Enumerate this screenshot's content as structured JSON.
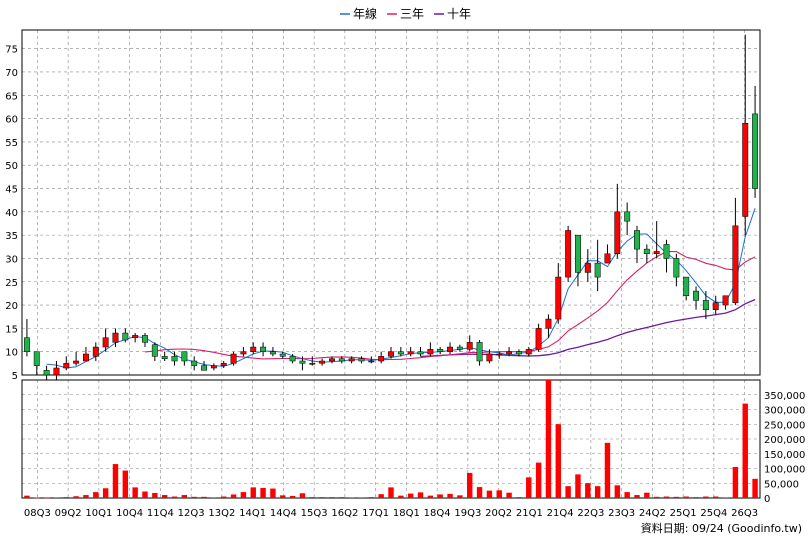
{
  "chart_data": {
    "type": "candlestick",
    "legend": [
      {
        "name": "年線",
        "color": "#1f6fd6"
      },
      {
        "name": "三年",
        "color": "#d8206b"
      },
      {
        "name": "十年",
        "color": "#6a1ba0"
      }
    ],
    "x_labels": [
      "08Q3",
      "09Q2",
      "10Q1",
      "10Q4",
      "11Q4",
      "12Q3",
      "13Q2",
      "14Q1",
      "14Q4",
      "15Q3",
      "16Q2",
      "17Q1",
      "18Q1",
      "18Q4",
      "19Q3",
      "20Q2",
      "21Q1",
      "21Q4",
      "22Q3",
      "23Q3",
      "24Q2",
      "25Q1",
      "25Q4",
      "26Q3"
    ],
    "price_axis": {
      "ticks": [
        5,
        10,
        15,
        20,
        25,
        30,
        35,
        40,
        45,
        50,
        55,
        60,
        65,
        70,
        75
      ],
      "ylim": [
        5,
        79
      ]
    },
    "volume_axis": {
      "ticks": [
        "0",
        "50,000",
        "100,000",
        "150,000",
        "200,000",
        "250,000",
        "300,000",
        "350,000"
      ],
      "max": 400000
    },
    "colors": {
      "up": "#ff0000",
      "down": "#22b14c",
      "volume": "#ff0000",
      "grid": "#888888"
    },
    "candles": [
      {
        "o": 13,
        "c": 10,
        "h": 17,
        "l": 9
      },
      {
        "o": 10,
        "c": 7,
        "h": 10,
        "l": 5
      },
      {
        "o": 6,
        "c": 5,
        "h": 7,
        "l": 4
      },
      {
        "o": 5,
        "c": 6.5,
        "h": 8,
        "l": 4
      },
      {
        "o": 6.5,
        "c": 7.5,
        "h": 9,
        "l": 6
      },
      {
        "o": 7.5,
        "c": 8,
        "h": 10,
        "l": 7
      },
      {
        "o": 8,
        "c": 9.5,
        "h": 11,
        "l": 8
      },
      {
        "o": 9,
        "c": 11,
        "h": 12,
        "l": 8
      },
      {
        "o": 11,
        "c": 13,
        "h": 15,
        "l": 10
      },
      {
        "o": 12,
        "c": 14,
        "h": 15,
        "l": 11
      },
      {
        "o": 14,
        "c": 12.5,
        "h": 15,
        "l": 12
      },
      {
        "o": 13,
        "c": 13.5,
        "h": 14,
        "l": 12
      },
      {
        "o": 13.5,
        "c": 12,
        "h": 14,
        "l": 11
      },
      {
        "o": 11.5,
        "c": 9,
        "h": 12,
        "l": 8
      },
      {
        "o": 9,
        "c": 8.5,
        "h": 10,
        "l": 8
      },
      {
        "o": 9,
        "c": 8,
        "h": 10,
        "l": 7
      },
      {
        "o": 10,
        "c": 8,
        "h": 10,
        "l": 7
      },
      {
        "o": 8,
        "c": 7,
        "h": 9,
        "l": 6
      },
      {
        "o": 7,
        "c": 6,
        "h": 8,
        "l": 6
      },
      {
        "o": 6.5,
        "c": 7,
        "h": 7.5,
        "l": 6
      },
      {
        "o": 7,
        "c": 7.5,
        "h": 8,
        "l": 6.5
      },
      {
        "o": 7.5,
        "c": 9.5,
        "h": 10,
        "l": 7
      },
      {
        "o": 9.5,
        "c": 10,
        "h": 11,
        "l": 9
      },
      {
        "o": 10,
        "c": 11,
        "h": 12,
        "l": 9.5
      },
      {
        "o": 11,
        "c": 10,
        "h": 12,
        "l": 9
      },
      {
        "o": 10,
        "c": 9.5,
        "h": 11,
        "l": 9
      },
      {
        "o": 9.5,
        "c": 9,
        "h": 10,
        "l": 8.5
      },
      {
        "o": 9,
        "c": 8,
        "h": 9.5,
        "l": 7.5
      },
      {
        "o": 8,
        "c": 7.5,
        "h": 9,
        "l": 6
      },
      {
        "o": 7.5,
        "c": 7.5,
        "h": 9,
        "l": 7
      },
      {
        "o": 7.5,
        "c": 8,
        "h": 8.5,
        "l": 7
      },
      {
        "o": 8,
        "c": 8.5,
        "h": 9,
        "l": 7.5
      },
      {
        "o": 8.5,
        "c": 8,
        "h": 9,
        "l": 7.5
      },
      {
        "o": 8,
        "c": 8.5,
        "h": 9,
        "l": 7.5
      },
      {
        "o": 8.5,
        "c": 8,
        "h": 9,
        "l": 7.5
      },
      {
        "o": 8,
        "c": 8,
        "h": 9,
        "l": 7.5
      },
      {
        "o": 8,
        "c": 9,
        "h": 10,
        "l": 7.5
      },
      {
        "o": 9,
        "c": 10,
        "h": 11,
        "l": 8.5
      },
      {
        "o": 10,
        "c": 9.5,
        "h": 11,
        "l": 9
      },
      {
        "o": 9.5,
        "c": 10,
        "h": 11,
        "l": 9
      },
      {
        "o": 10,
        "c": 9.5,
        "h": 11,
        "l": 9
      },
      {
        "o": 9.5,
        "c": 10.5,
        "h": 12,
        "l": 9
      },
      {
        "o": 10.5,
        "c": 10,
        "h": 11,
        "l": 9.5
      },
      {
        "o": 10,
        "c": 11,
        "h": 12,
        "l": 9.5
      },
      {
        "o": 11,
        "c": 10.5,
        "h": 11.5,
        "l": 10
      },
      {
        "o": 10.5,
        "c": 12,
        "h": 13.5,
        "l": 10
      },
      {
        "o": 12,
        "c": 8,
        "h": 12.5,
        "l": 7
      },
      {
        "o": 8,
        "c": 9.5,
        "h": 10.5,
        "l": 7.5
      },
      {
        "o": 9.5,
        "c": 9.5,
        "h": 10,
        "l": 8.5
      },
      {
        "o": 9.5,
        "c": 10,
        "h": 11,
        "l": 9
      },
      {
        "o": 10,
        "c": 9.5,
        "h": 10.5,
        "l": 9
      },
      {
        "o": 9.5,
        "c": 10.5,
        "h": 11,
        "l": 9
      },
      {
        "o": 10.5,
        "c": 15,
        "h": 16,
        "l": 10
      },
      {
        "o": 15,
        "c": 17,
        "h": 18,
        "l": 13
      },
      {
        "o": 17,
        "c": 26,
        "h": 29,
        "l": 16
      },
      {
        "o": 26,
        "c": 36,
        "h": 37,
        "l": 25
      },
      {
        "o": 35,
        "c": 27,
        "h": 35,
        "l": 24
      },
      {
        "o": 27,
        "c": 29,
        "h": 32,
        "l": 25
      },
      {
        "o": 29,
        "c": 26,
        "h": 34,
        "l": 23
      },
      {
        "o": 29,
        "c": 31,
        "h": 33,
        "l": 29
      },
      {
        "o": 31,
        "c": 40,
        "h": 46,
        "l": 30
      },
      {
        "o": 40,
        "c": 38,
        "h": 42,
        "l": 35
      },
      {
        "o": 36,
        "c": 32,
        "h": 37,
        "l": 29
      },
      {
        "o": 32,
        "c": 31,
        "h": 33,
        "l": 29
      },
      {
        "o": 31,
        "c": 31.5,
        "h": 38,
        "l": 30
      },
      {
        "o": 33,
        "c": 30,
        "h": 34,
        "l": 27
      },
      {
        "o": 30,
        "c": 26,
        "h": 31,
        "l": 24
      },
      {
        "o": 26,
        "c": 22,
        "h": 26,
        "l": 21
      },
      {
        "o": 23,
        "c": 21,
        "h": 24,
        "l": 19
      },
      {
        "o": 21,
        "c": 19,
        "h": 23,
        "l": 17
      },
      {
        "o": 19,
        "c": 20.5,
        "h": 22,
        "l": 18
      },
      {
        "o": 20,
        "c": 22,
        "h": 22,
        "l": 19
      },
      {
        "o": 20.5,
        "c": 37,
        "h": 43,
        "l": 20
      },
      {
        "o": 39,
        "c": 59,
        "h": 78,
        "l": 35
      },
      {
        "o": 61,
        "c": 45,
        "h": 67,
        "l": 43
      }
    ],
    "volumes": [
      8000,
      1000,
      1000,
      2000,
      3000,
      6000,
      10000,
      20000,
      33000,
      115000,
      93000,
      36000,
      22000,
      17000,
      10000,
      5000,
      10000,
      4000,
      4000,
      2000,
      5000,
      12000,
      20000,
      36000,
      34000,
      32000,
      9000,
      7000,
      16000,
      3000,
      3000,
      3000,
      3000,
      2000,
      2000,
      3000,
      13000,
      36000,
      8000,
      15000,
      19000,
      8000,
      12000,
      14000,
      9000,
      85000,
      37000,
      25000,
      26000,
      18000,
      3000,
      70000,
      120000,
      430000,
      250000,
      40000,
      80000,
      50000,
      40000,
      187000,
      43000,
      20000,
      10000,
      18000,
      4000,
      5000,
      4000,
      5000,
      3000,
      5000,
      5000,
      2000,
      105000,
      320000,
      65000
    ]
  },
  "source": "資料日期: 09/24 (Goodinfo.tw)"
}
